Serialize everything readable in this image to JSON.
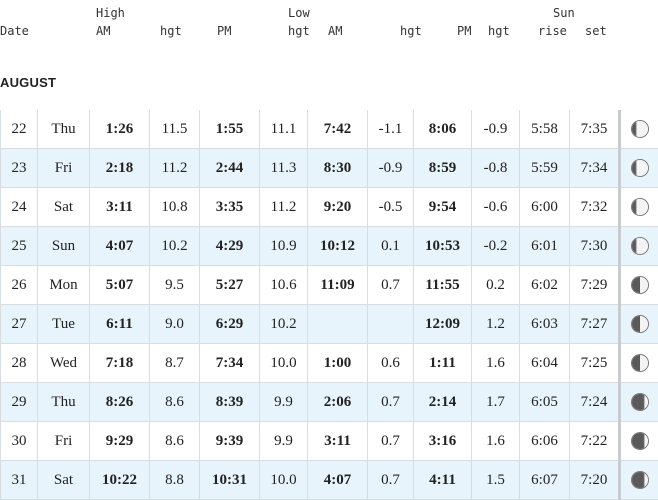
{
  "header": {
    "date": "Date",
    "high": "High",
    "high_am": "AM",
    "high_am_hgt": "hgt",
    "high_pm": "PM",
    "low": "Low",
    "high_pm_hgt": "hgt",
    "low_am": "AM",
    "low_am_hgt": "hgt",
    "low_pm": "PM",
    "low_pm_hgt": "hgt",
    "sun": "Sun",
    "sunrise": "rise",
    "sunset": "set"
  },
  "month": "AUGUST",
  "rows": [
    {
      "date": "22",
      "day": "Thu",
      "hi_am": "1:26",
      "hi_am_h": "11.5",
      "hi_pm": "1:55",
      "hi_pm_h": "11.1",
      "lo_am": "7:42",
      "lo_am_h": "-1.1",
      "lo_pm": "8:06",
      "lo_pm_h": "-0.9",
      "rise": "5:58",
      "set": "7:35",
      "moon": "waning-gibbous-icon"
    },
    {
      "date": "23",
      "day": "Fri",
      "hi_am": "2:18",
      "hi_am_h": "11.2",
      "hi_pm": "2:44",
      "hi_pm_h": "11.3",
      "lo_am": "8:30",
      "lo_am_h": "-0.9",
      "lo_pm": "8:59",
      "lo_pm_h": "-0.8",
      "rise": "5:59",
      "set": "7:34",
      "moon": "waning-gibbous-icon"
    },
    {
      "date": "24",
      "day": "Sat",
      "hi_am": "3:11",
      "hi_am_h": "10.8",
      "hi_pm": "3:35",
      "hi_pm_h": "11.2",
      "lo_am": "9:20",
      "lo_am_h": "-0.5",
      "lo_pm": "9:54",
      "lo_pm_h": "-0.6",
      "rise": "6:00",
      "set": "7:32",
      "moon": "waning-gibbous-icon"
    },
    {
      "date": "25",
      "day": "Sun",
      "hi_am": "4:07",
      "hi_am_h": "10.2",
      "hi_pm": "4:29",
      "hi_pm_h": "10.9",
      "lo_am": "10:12",
      "lo_am_h": "0.1",
      "lo_pm": "10:53",
      "lo_pm_h": "-0.2",
      "rise": "6:01",
      "set": "7:30",
      "moon": "waning-gibbous-icon"
    },
    {
      "date": "26",
      "day": "Mon",
      "hi_am": "5:07",
      "hi_am_h": "9.5",
      "hi_pm": "5:27",
      "hi_pm_h": "10.6",
      "lo_am": "11:09",
      "lo_am_h": "0.7",
      "lo_pm": "11:55",
      "lo_pm_h": "0.2",
      "rise": "6:02",
      "set": "7:29",
      "moon": "last-quarter-moon-icon"
    },
    {
      "date": "27",
      "day": "Tue",
      "hi_am": "6:11",
      "hi_am_h": "9.0",
      "hi_pm": "6:29",
      "hi_pm_h": "10.2",
      "lo_am": "",
      "lo_am_h": "",
      "lo_pm": "12:09",
      "lo_pm_h": "1.2",
      "rise": "6:03",
      "set": "7:27",
      "moon": "last-quarter-moon-icon"
    },
    {
      "date": "28",
      "day": "Wed",
      "hi_am": "7:18",
      "hi_am_h": "8.7",
      "hi_pm": "7:34",
      "hi_pm_h": "10.0",
      "lo_am": "1:00",
      "lo_am_h": "0.6",
      "lo_pm": "1:11",
      "lo_pm_h": "1.6",
      "rise": "6:04",
      "set": "7:25",
      "moon": "last-quarter-moon-icon"
    },
    {
      "date": "29",
      "day": "Thu",
      "hi_am": "8:26",
      "hi_am_h": "8.6",
      "hi_pm": "8:39",
      "hi_pm_h": "9.9",
      "lo_am": "2:06",
      "lo_am_h": "0.7",
      "lo_pm": "2:14",
      "lo_pm_h": "1.7",
      "rise": "6:05",
      "set": "7:24",
      "moon": "waning-crescent-icon"
    },
    {
      "date": "30",
      "day": "Fri",
      "hi_am": "9:29",
      "hi_am_h": "8.6",
      "hi_pm": "9:39",
      "hi_pm_h": "9.9",
      "lo_am": "3:11",
      "lo_am_h": "0.7",
      "lo_pm": "3:16",
      "lo_pm_h": "1.6",
      "rise": "6:06",
      "set": "7:22",
      "moon": "waning-crescent-icon"
    },
    {
      "date": "31",
      "day": "Sat",
      "hi_am": "10:22",
      "hi_am_h": "8.8",
      "hi_pm": "10:31",
      "hi_pm_h": "10.0",
      "lo_am": "4:07",
      "lo_am_h": "0.7",
      "lo_pm": "4:11",
      "lo_pm_h": "1.5",
      "rise": "6:07",
      "set": "7:20",
      "moon": "waning-crescent-icon"
    }
  ]
}
